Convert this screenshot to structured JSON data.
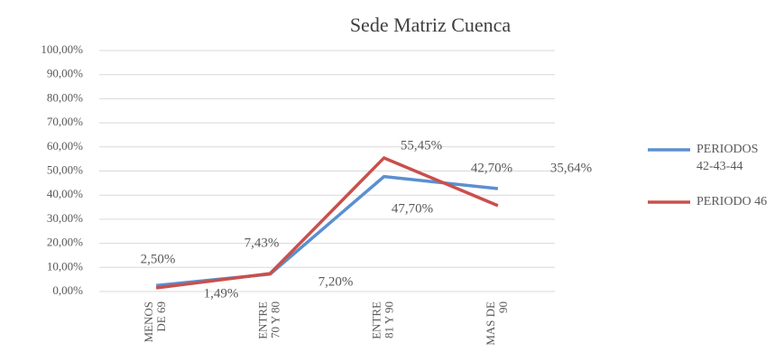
{
  "chart_data": {
    "type": "line",
    "title": "Sede Matriz Cuenca",
    "categories": [
      [
        "MENOS",
        "DE 69"
      ],
      [
        "ENTRE",
        "70 Y 80"
      ],
      [
        "ENTRE",
        "81 Y 90"
      ],
      [
        "MAS DE",
        "90"
      ]
    ],
    "series": [
      {
        "name": "PERIODOS 42-43-44",
        "color": "#5b8fd0",
        "values": [
          2.5,
          7.2,
          47.7,
          42.7
        ],
        "value_labels": [
          "2,50%",
          "7,20%",
          "47,70%",
          "42,70%"
        ]
      },
      {
        "name": "PERIODO 46",
        "color": "#c9504c",
        "values": [
          1.49,
          7.43,
          55.45,
          35.64
        ],
        "value_labels": [
          "1,49%",
          "7,43%",
          "55,45%",
          "35,64%"
        ]
      }
    ],
    "ylim": [
      0,
      100
    ],
    "yticks": [
      {
        "value": 0,
        "label": "0,00%"
      },
      {
        "value": 10,
        "label": "10,00%"
      },
      {
        "value": 20,
        "label": "20,00%"
      },
      {
        "value": 30,
        "label": "30,00%"
      },
      {
        "value": 40,
        "label": "40,00%"
      },
      {
        "value": 50,
        "label": "50,00%"
      },
      {
        "value": 60,
        "label": "60,00%"
      },
      {
        "value": 70,
        "label": "70,00%"
      },
      {
        "value": 80,
        "label": "80,00%"
      },
      {
        "value": 90,
        "label": "90,00%"
      },
      {
        "value": 100,
        "label": "100,00%"
      }
    ],
    "grid": true,
    "legend": "right"
  }
}
